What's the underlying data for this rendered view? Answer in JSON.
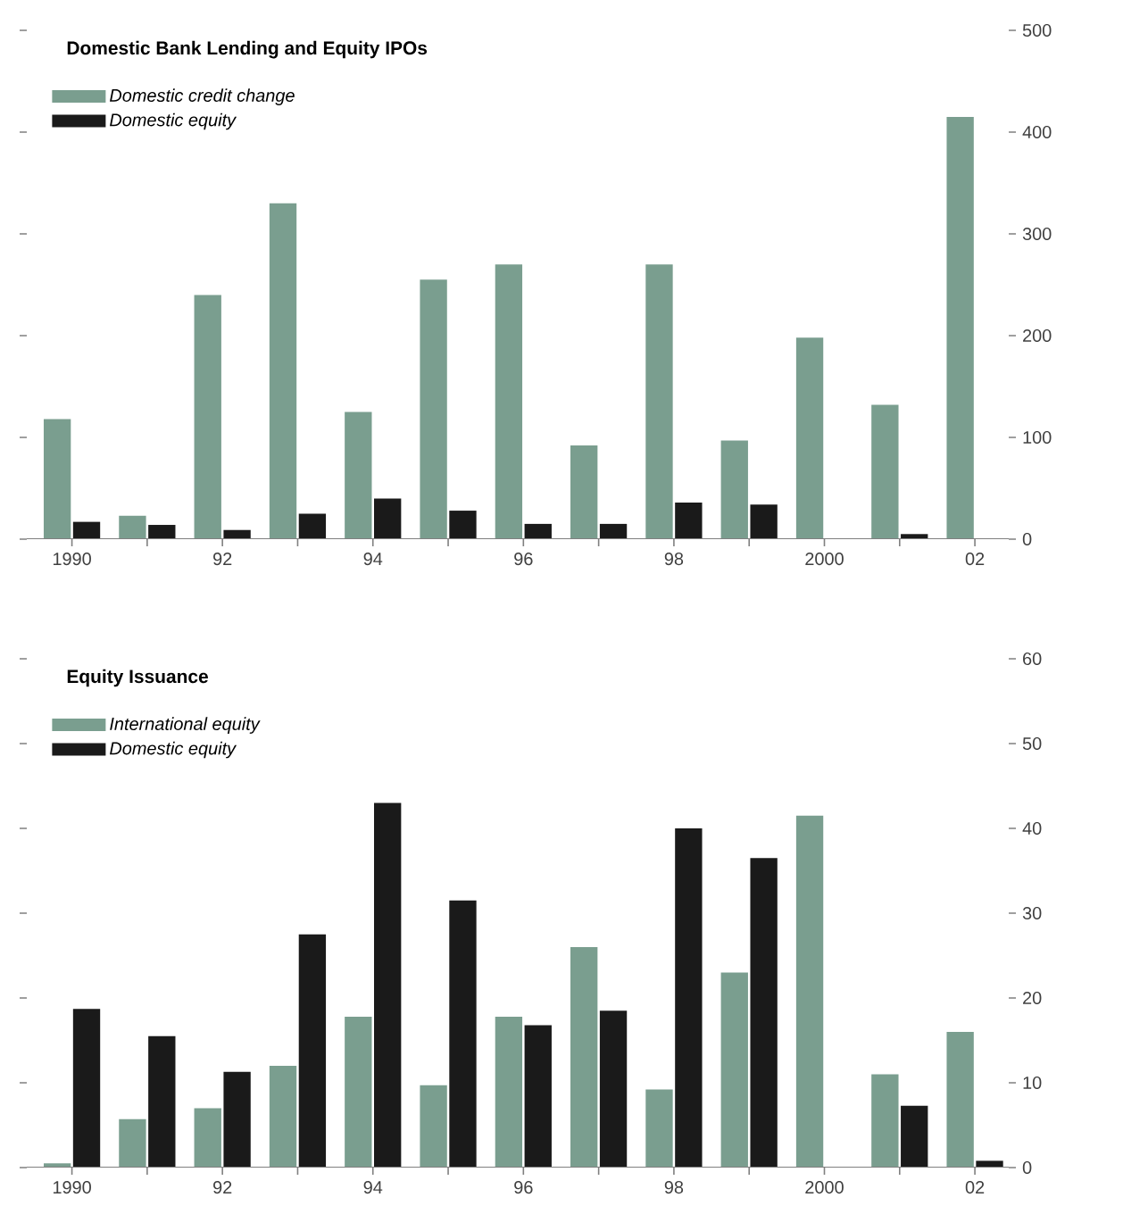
{
  "chart_data": [
    {
      "type": "bar",
      "title": "Domestic Bank Lending and Equity IPOs",
      "categories": [
        "1990",
        null,
        "92",
        null,
        "94",
        null,
        "96",
        null,
        "98",
        null,
        "2000",
        null,
        "02"
      ],
      "ylim": [
        0,
        500
      ],
      "yticks": [
        0,
        100,
        200,
        300,
        400,
        500
      ],
      "legend": "top left",
      "series": [
        {
          "name": "Domestic credit change",
          "color": "#7a9e8f",
          "values": [
            118,
            23,
            240,
            330,
            125,
            255,
            270,
            92,
            270,
            97,
            198,
            132,
            415
          ]
        },
        {
          "name": "Domestic equity",
          "color": "#1a1a1a",
          "values": [
            17,
            14,
            9,
            25,
            40,
            28,
            15,
            15,
            36,
            34,
            null,
            5,
            null
          ]
        }
      ]
    },
    {
      "type": "bar",
      "title": "Equity Issuance",
      "categories": [
        "1990",
        null,
        "92",
        null,
        "94",
        null,
        "96",
        null,
        "98",
        null,
        "2000",
        null,
        "02"
      ],
      "ylim": [
        0,
        60
      ],
      "yticks": [
        0,
        10,
        20,
        30,
        40,
        50,
        60
      ],
      "legend": "top left",
      "series": [
        {
          "name": "International equity",
          "color": "#7a9e8f",
          "values": [
            0.5,
            5.7,
            7,
            12,
            17.8,
            9.7,
            17.8,
            26,
            9.2,
            23,
            41.5,
            11,
            16
          ]
        },
        {
          "name": "Domestic equity",
          "color": "#1a1a1a",
          "values": [
            18.7,
            15.5,
            11.3,
            27.5,
            43,
            31.5,
            16.8,
            18.5,
            40,
            36.5,
            null,
            7.3,
            0.8
          ]
        }
      ]
    }
  ]
}
